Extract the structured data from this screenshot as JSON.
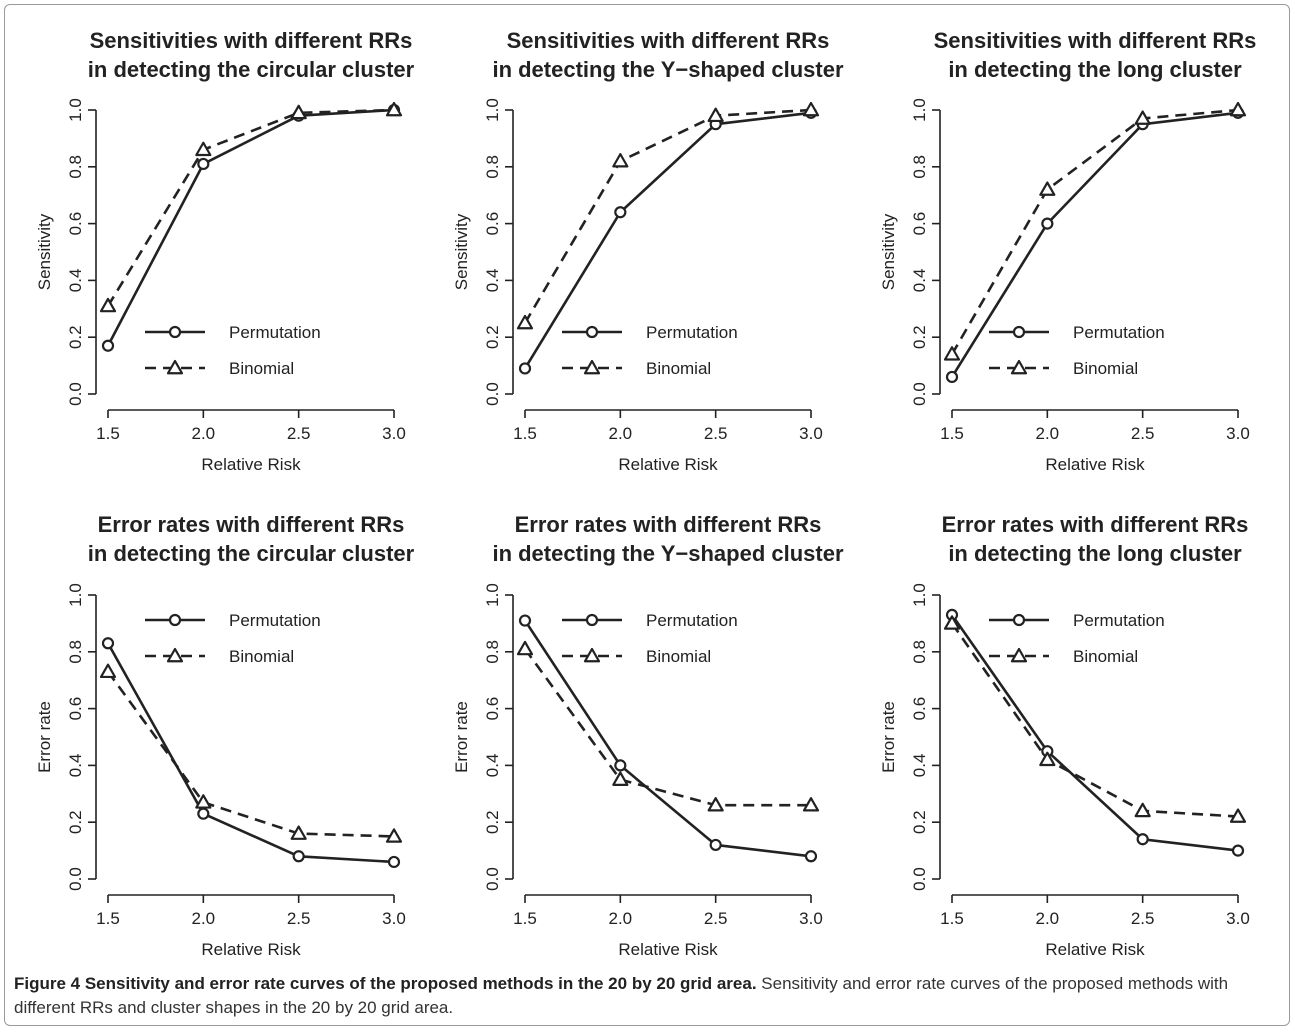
{
  "chart_data": [
    {
      "type": "line",
      "title": "Sensitivities with different RRs\nin detecting the circular cluster",
      "xlabel": "Relative Risk",
      "ylabel": "Sensitivity",
      "x": [
        1.5,
        2.0,
        2.5,
        3.0
      ],
      "xticks": [
        "1.5",
        "2.0",
        "2.5",
        "3.0"
      ],
      "ylim": [
        0,
        1
      ],
      "yticks": [
        "0.0",
        "0.2",
        "0.4",
        "0.6",
        "0.8",
        "1.0"
      ],
      "legend": "bottom-right",
      "series": [
        {
          "name": "Permutation",
          "values": [
            0.17,
            0.81,
            0.98,
            1.0
          ],
          "line": "solid",
          "marker": "circle"
        },
        {
          "name": "Binomial",
          "values": [
            0.31,
            0.86,
            0.99,
            1.0
          ],
          "line": "dashed",
          "marker": "triangle"
        }
      ]
    },
    {
      "type": "line",
      "title": "Sensitivities with different RRs\nin detecting the Y−shaped cluster",
      "xlabel": "Relative Risk",
      "ylabel": "Sensitivity",
      "x": [
        1.5,
        2.0,
        2.5,
        3.0
      ],
      "xticks": [
        "1.5",
        "2.0",
        "2.5",
        "3.0"
      ],
      "ylim": [
        0,
        1
      ],
      "yticks": [
        "0.0",
        "0.2",
        "0.4",
        "0.6",
        "0.8",
        "1.0"
      ],
      "legend": "bottom-right",
      "series": [
        {
          "name": "Permutation",
          "values": [
            0.09,
            0.64,
            0.95,
            0.99
          ],
          "line": "solid",
          "marker": "circle"
        },
        {
          "name": "Binomial",
          "values": [
            0.25,
            0.82,
            0.98,
            1.0
          ],
          "line": "dashed",
          "marker": "triangle"
        }
      ]
    },
    {
      "type": "line",
      "title": "Sensitivities with different RRs\nin detecting the long cluster",
      "xlabel": "Relative Risk",
      "ylabel": "Sensitivity",
      "x": [
        1.5,
        2.0,
        2.5,
        3.0
      ],
      "xticks": [
        "1.5",
        "2.0",
        "2.5",
        "3.0"
      ],
      "ylim": [
        0,
        1
      ],
      "yticks": [
        "0.0",
        "0.2",
        "0.4",
        "0.6",
        "0.8",
        "1.0"
      ],
      "legend": "bottom-right",
      "series": [
        {
          "name": "Permutation",
          "values": [
            0.06,
            0.6,
            0.95,
            0.99
          ],
          "line": "solid",
          "marker": "circle"
        },
        {
          "name": "Binomial",
          "values": [
            0.14,
            0.72,
            0.97,
            1.0
          ],
          "line": "dashed",
          "marker": "triangle"
        }
      ]
    },
    {
      "type": "line",
      "title": "Error rates with different RRs\nin detecting the circular cluster",
      "xlabel": "Relative Risk",
      "ylabel": "Error rate",
      "x": [
        1.5,
        2.0,
        2.5,
        3.0
      ],
      "xticks": [
        "1.5",
        "2.0",
        "2.5",
        "3.0"
      ],
      "ylim": [
        0,
        1
      ],
      "yticks": [
        "0.0",
        "0.2",
        "0.4",
        "0.6",
        "0.8",
        "1.0"
      ],
      "legend": "top-right",
      "series": [
        {
          "name": "Permutation",
          "values": [
            0.83,
            0.23,
            0.08,
            0.06
          ],
          "line": "solid",
          "marker": "circle"
        },
        {
          "name": "Binomial",
          "values": [
            0.73,
            0.27,
            0.16,
            0.15
          ],
          "line": "dashed",
          "marker": "triangle"
        }
      ]
    },
    {
      "type": "line",
      "title": "Error rates with different RRs\nin detecting the Y−shaped cluster",
      "xlabel": "Relative Risk",
      "ylabel": "Error rate",
      "x": [
        1.5,
        2.0,
        2.5,
        3.0
      ],
      "xticks": [
        "1.5",
        "2.0",
        "2.5",
        "3.0"
      ],
      "ylim": [
        0,
        1
      ],
      "yticks": [
        "0.0",
        "0.2",
        "0.4",
        "0.6",
        "0.8",
        "1.0"
      ],
      "legend": "top-right",
      "series": [
        {
          "name": "Permutation",
          "values": [
            0.91,
            0.4,
            0.12,
            0.08
          ],
          "line": "solid",
          "marker": "circle"
        },
        {
          "name": "Binomial",
          "values": [
            0.81,
            0.35,
            0.26,
            0.26
          ],
          "line": "dashed",
          "marker": "triangle"
        }
      ]
    },
    {
      "type": "line",
      "title": "Error rates with different RRs\nin detecting the long cluster",
      "xlabel": "Relative Risk",
      "ylabel": "Error rate",
      "x": [
        1.5,
        2.0,
        2.5,
        3.0
      ],
      "xticks": [
        "1.5",
        "2.0",
        "2.5",
        "3.0"
      ],
      "ylim": [
        0,
        1
      ],
      "yticks": [
        "0.0",
        "0.2",
        "0.4",
        "0.6",
        "0.8",
        "1.0"
      ],
      "legend": "top-right",
      "series": [
        {
          "name": "Permutation",
          "values": [
            0.93,
            0.45,
            0.14,
            0.1
          ],
          "line": "solid",
          "marker": "circle"
        },
        {
          "name": "Binomial",
          "values": [
            0.9,
            0.42,
            0.24,
            0.22
          ],
          "line": "dashed",
          "marker": "triangle"
        }
      ]
    }
  ],
  "caption": {
    "lead": "Figure 4 Sensitivity and error rate curves of the proposed methods in the 20 by 20 grid area.",
    "text": " Sensitivity and error rate curves of the proposed methods with different RRs and cluster shapes in the 20 by 20 grid area."
  }
}
